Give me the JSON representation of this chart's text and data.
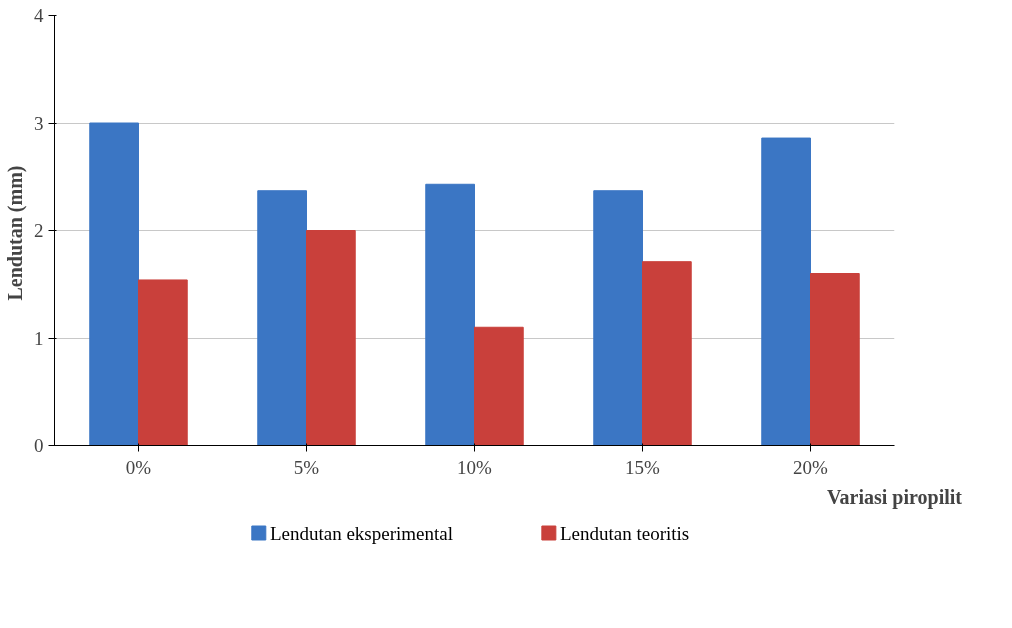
{
  "chart_data": {
    "type": "bar",
    "xlabel": "Variasi piropilit",
    "ylabel": "Lendutan  (mm)",
    "categories": [
      "0%",
      "5%",
      "10%",
      "15%",
      "20%"
    ],
    "series": [
      {
        "name": "Lendutan eksperimental",
        "color": "#3b76c4",
        "values": [
          3.0,
          2.37,
          2.43,
          2.37,
          2.86
        ]
      },
      {
        "name": "Lendutan teoritis",
        "color": "#c9403b",
        "values": [
          1.54,
          2.0,
          1.1,
          1.71,
          1.6
        ]
      }
    ],
    "ylim": [
      0,
      4
    ],
    "yticks": [
      0,
      1,
      2,
      3,
      4
    ],
    "grid": "y",
    "legend": "bottom"
  }
}
